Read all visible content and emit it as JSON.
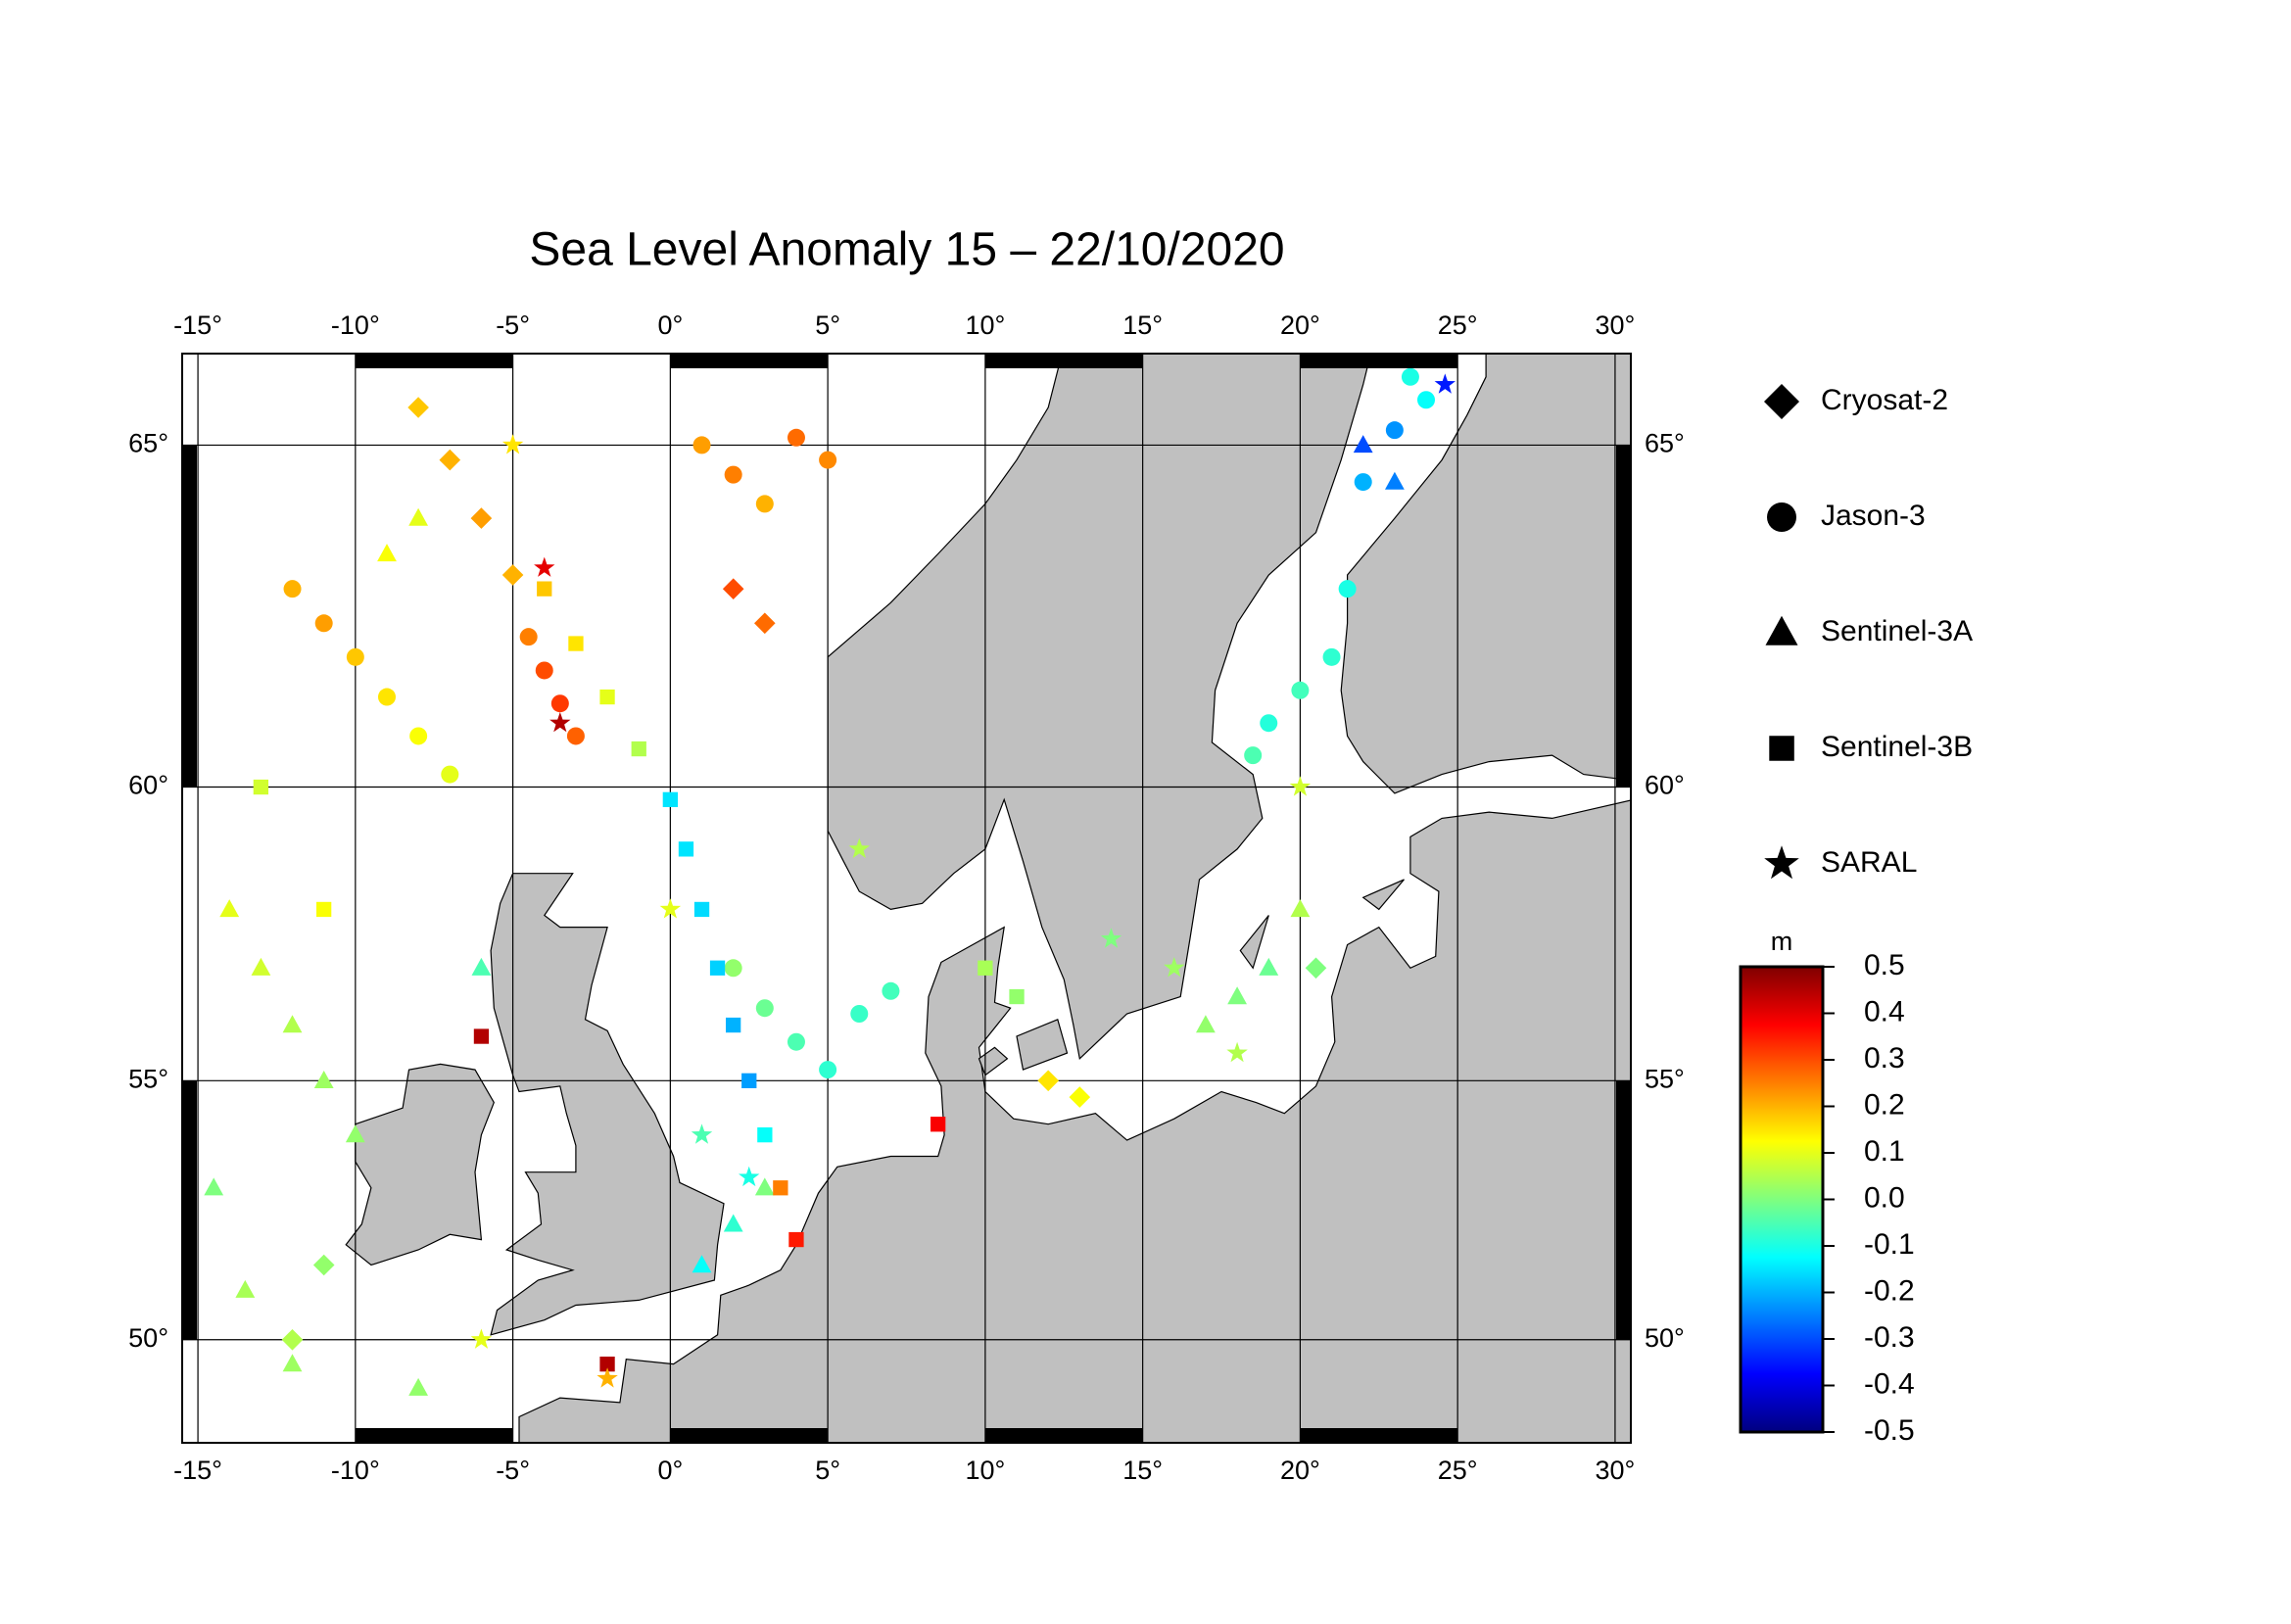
{
  "chart_data": {
    "type": "map-scatter",
    "title": "Sea Level Anomaly 15 – 22/10/2020",
    "xlim": [
      -15.5,
      30.5
    ],
    "ylim": [
      47.85,
      66.2
    ],
    "xticks": [
      {
        "value": -15,
        "label": "-15°"
      },
      {
        "value": -10,
        "label": "-10°"
      },
      {
        "value": -5,
        "label": "-5°"
      },
      {
        "value": 0,
        "label": "0°"
      },
      {
        "value": 5,
        "label": "5°"
      },
      {
        "value": 10,
        "label": "10°"
      },
      {
        "value": 15,
        "label": "15°"
      },
      {
        "value": 20,
        "label": "20°"
      },
      {
        "value": 25,
        "label": "25°"
      },
      {
        "value": 30,
        "label": "30°"
      }
    ],
    "yticks": [
      {
        "value": 50,
        "label": "50°"
      },
      {
        "value": 55,
        "label": "55°"
      },
      {
        "value": 60,
        "label": "60°"
      },
      {
        "value": 65,
        "label": "65°"
      }
    ],
    "grid": true,
    "colorbar": {
      "unit": "m",
      "clim": [
        -0.5,
        0.5
      ],
      "colorscale": [
        "#00007f",
        "#0000ff",
        "#007fff",
        "#00ffff",
        "#7fff7f",
        "#ffff00",
        "#ff7f00",
        "#ff0000",
        "#7f0000"
      ],
      "ticks": [
        0.5,
        0.4,
        0.3,
        0.2,
        0.1,
        {
          "value": 0,
          "label": "0.0"
        },
        -0.1,
        -0.2,
        -0.3,
        -0.4,
        -0.5
      ]
    },
    "series": [
      {
        "name": "Cryosat-2",
        "marker": "diamond",
        "lon": [
          -8,
          -7,
          -6,
          -5,
          2,
          3,
          12,
          13,
          -12,
          -11,
          20.5
        ],
        "lat": [
          65.5,
          64.8,
          64,
          63.2,
          63,
          62.5,
          55,
          54.7,
          50,
          51.5,
          57
        ],
        "values": [
          0.18,
          0.2,
          0.22,
          0.2,
          0.3,
          0.27,
          0.15,
          0.12,
          0.05,
          0.02,
          0
        ]
      },
      {
        "name": "Jason-3",
        "marker": "circle",
        "lon": [
          -12,
          -11,
          -10,
          -9,
          -8,
          -7,
          -4.5,
          -4,
          -3.5,
          -3,
          1,
          2,
          3,
          4,
          5,
          2,
          3,
          4,
          5,
          6,
          7,
          21,
          20,
          19,
          22,
          23,
          24,
          23.5,
          21.5,
          18.5
        ],
        "lat": [
          63,
          62.5,
          62,
          61.4,
          60.8,
          60.2,
          62.3,
          61.8,
          61.3,
          60.8,
          65,
          64.6,
          64.2,
          65.1,
          64.8,
          57,
          56.3,
          55.7,
          55.2,
          56.2,
          56.6,
          62,
          61.5,
          61,
          64.5,
          65.2,
          65.6,
          65.9,
          63,
          60.5
        ],
        "values": [
          0.2,
          0.22,
          0.18,
          0.15,
          0.12,
          0.1,
          0.25,
          0.3,
          0.32,
          0.28,
          0.22,
          0.25,
          0.2,
          0.27,
          0.24,
          0.02,
          -0.02,
          -0.05,
          -0.08,
          -0.07,
          -0.06,
          -0.08,
          -0.06,
          -0.09,
          -0.2,
          -0.23,
          -0.12,
          -0.1,
          -0.1,
          -0.05
        ]
      },
      {
        "name": "Sentinel-3A",
        "marker": "triangle",
        "lon": [
          -14,
          -13,
          -12,
          -11,
          -10,
          -14.5,
          -13.5,
          -12,
          -8,
          1,
          2,
          3,
          17,
          18,
          19,
          20,
          22,
          23,
          -6,
          -8,
          -9
        ],
        "lat": [
          58,
          57,
          56,
          55,
          54,
          53,
          51,
          49.5,
          49,
          51.5,
          52.3,
          53,
          56,
          56.5,
          57,
          58,
          65,
          64.5,
          57,
          64,
          63.5
        ],
        "values": [
          0.1,
          0.08,
          0.05,
          0.03,
          0.02,
          0,
          0.04,
          0.03,
          0.02,
          -0.12,
          -0.08,
          0,
          0.02,
          0,
          -0.02,
          0.05,
          -0.3,
          -0.25,
          -0.05,
          0.1,
          0.12
        ]
      },
      {
        "name": "Sentinel-3B",
        "marker": "square",
        "lon": [
          0,
          0.5,
          1,
          1.5,
          2,
          2.5,
          3,
          3.5,
          4,
          -4,
          -3,
          -2,
          -1,
          10,
          11,
          8.5,
          -6,
          -2,
          -13,
          -11
        ],
        "lat": [
          59.8,
          59,
          58,
          57,
          56,
          55,
          54,
          53,
          52,
          63,
          62.2,
          61.4,
          60.6,
          57,
          56.5,
          54.2,
          55.8,
          49.5,
          60,
          58
        ],
        "values": [
          -0.15,
          -0.15,
          -0.16,
          -0.17,
          -0.2,
          -0.22,
          -0.12,
          0.25,
          0.35,
          0.18,
          0.15,
          0.1,
          0.05,
          0.04,
          0.02,
          0.38,
          0.45,
          0.45,
          0.08,
          0.12
        ]
      },
      {
        "name": "SARAL",
        "marker": "star",
        "lon": [
          -5,
          -4,
          -3.5,
          0,
          1,
          2.5,
          14,
          16,
          18,
          20,
          24.6,
          -2,
          -6,
          6
        ],
        "lat": [
          65,
          63.3,
          61,
          58,
          54,
          53.2,
          57.5,
          57,
          55.5,
          60,
          65.8,
          49.2,
          50,
          59
        ],
        "values": [
          0.15,
          0.4,
          0.45,
          0.1,
          -0.05,
          -0.1,
          0,
          0.03,
          0.05,
          0.08,
          -0.35,
          0.2,
          0.1,
          0.05
        ]
      }
    ]
  }
}
